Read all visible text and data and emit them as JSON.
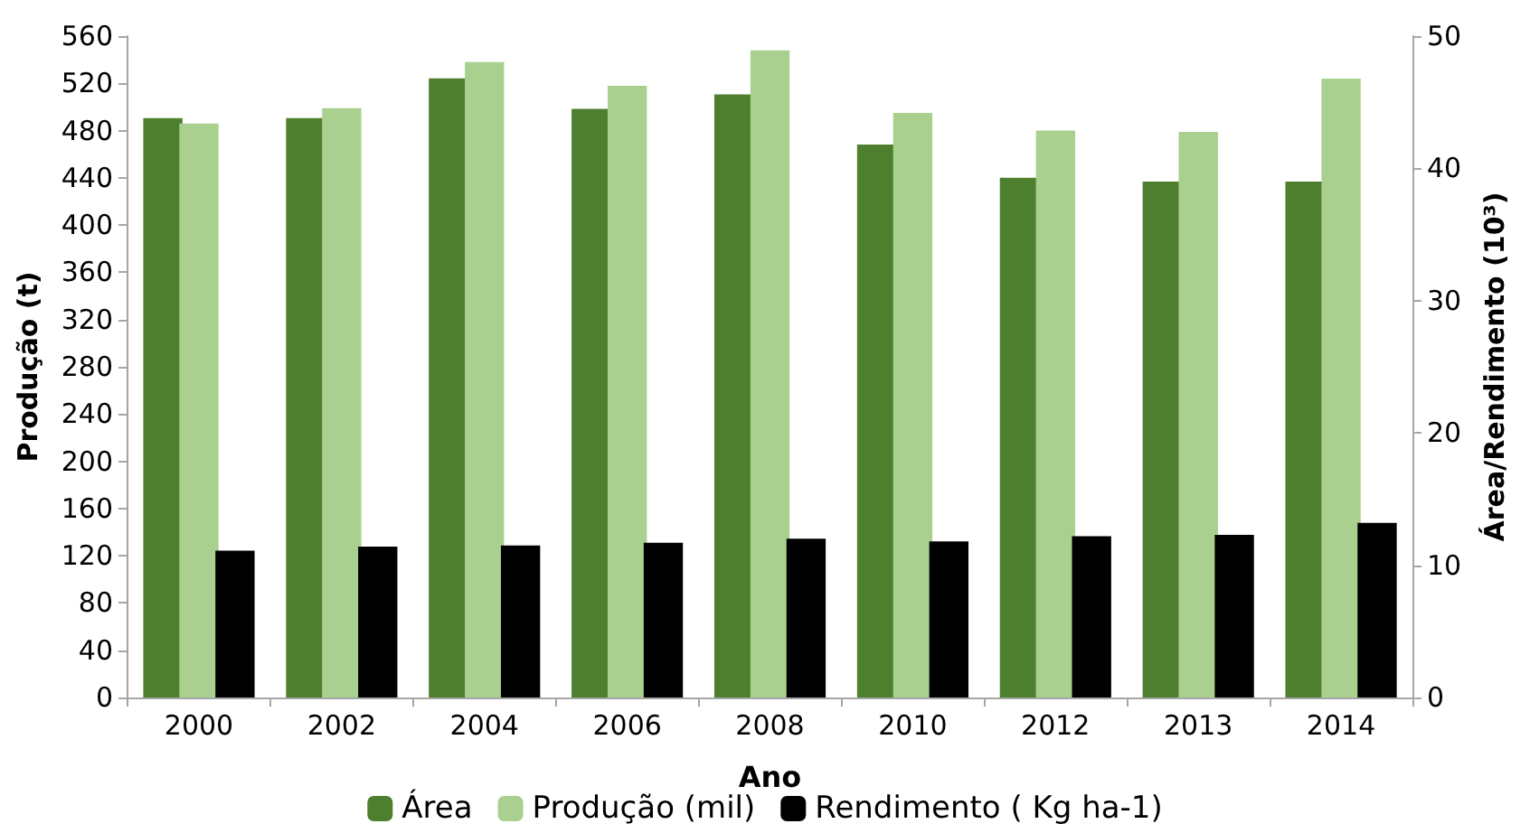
{
  "chart_data": {
    "type": "bar",
    "xlabel": "Ano",
    "ylabel": "Produção (t)",
    "y2label": "Área/Rendimento (10³)",
    "categories": [
      "2000",
      "2002",
      "2004",
      "2006",
      "2008",
      "2010",
      "2012",
      "2013",
      "2014"
    ],
    "series": [
      {
        "name": "Área",
        "color": "#4e7f2e",
        "axis": "y2",
        "values": [
          43.8,
          43.8,
          46.8,
          44.5,
          45.6,
          41.8,
          39.3,
          39.0,
          39.0
        ]
      },
      {
        "name": "Produção (mil)",
        "color": "#a9d08e",
        "axis": "y",
        "values": [
          486,
          499,
          538,
          518,
          548,
          495,
          480,
          479,
          524
        ]
      },
      {
        "name": "Rendimento ( Kg ha-1)",
        "color": "#000000",
        "axis": "y2",
        "values": [
          11.1,
          11.4,
          11.5,
          11.7,
          12.0,
          11.8,
          12.2,
          12.3,
          13.2
        ]
      }
    ],
    "ylim": [
      0,
      560
    ],
    "yticks": [
      0,
      40,
      80,
      120,
      160,
      200,
      240,
      280,
      320,
      360,
      400,
      440,
      480,
      520,
      560
    ],
    "y2lim": [
      0,
      50
    ],
    "y2ticks": [
      0,
      10,
      20,
      30,
      40,
      50
    ],
    "grid": false,
    "legend": "bottom"
  }
}
